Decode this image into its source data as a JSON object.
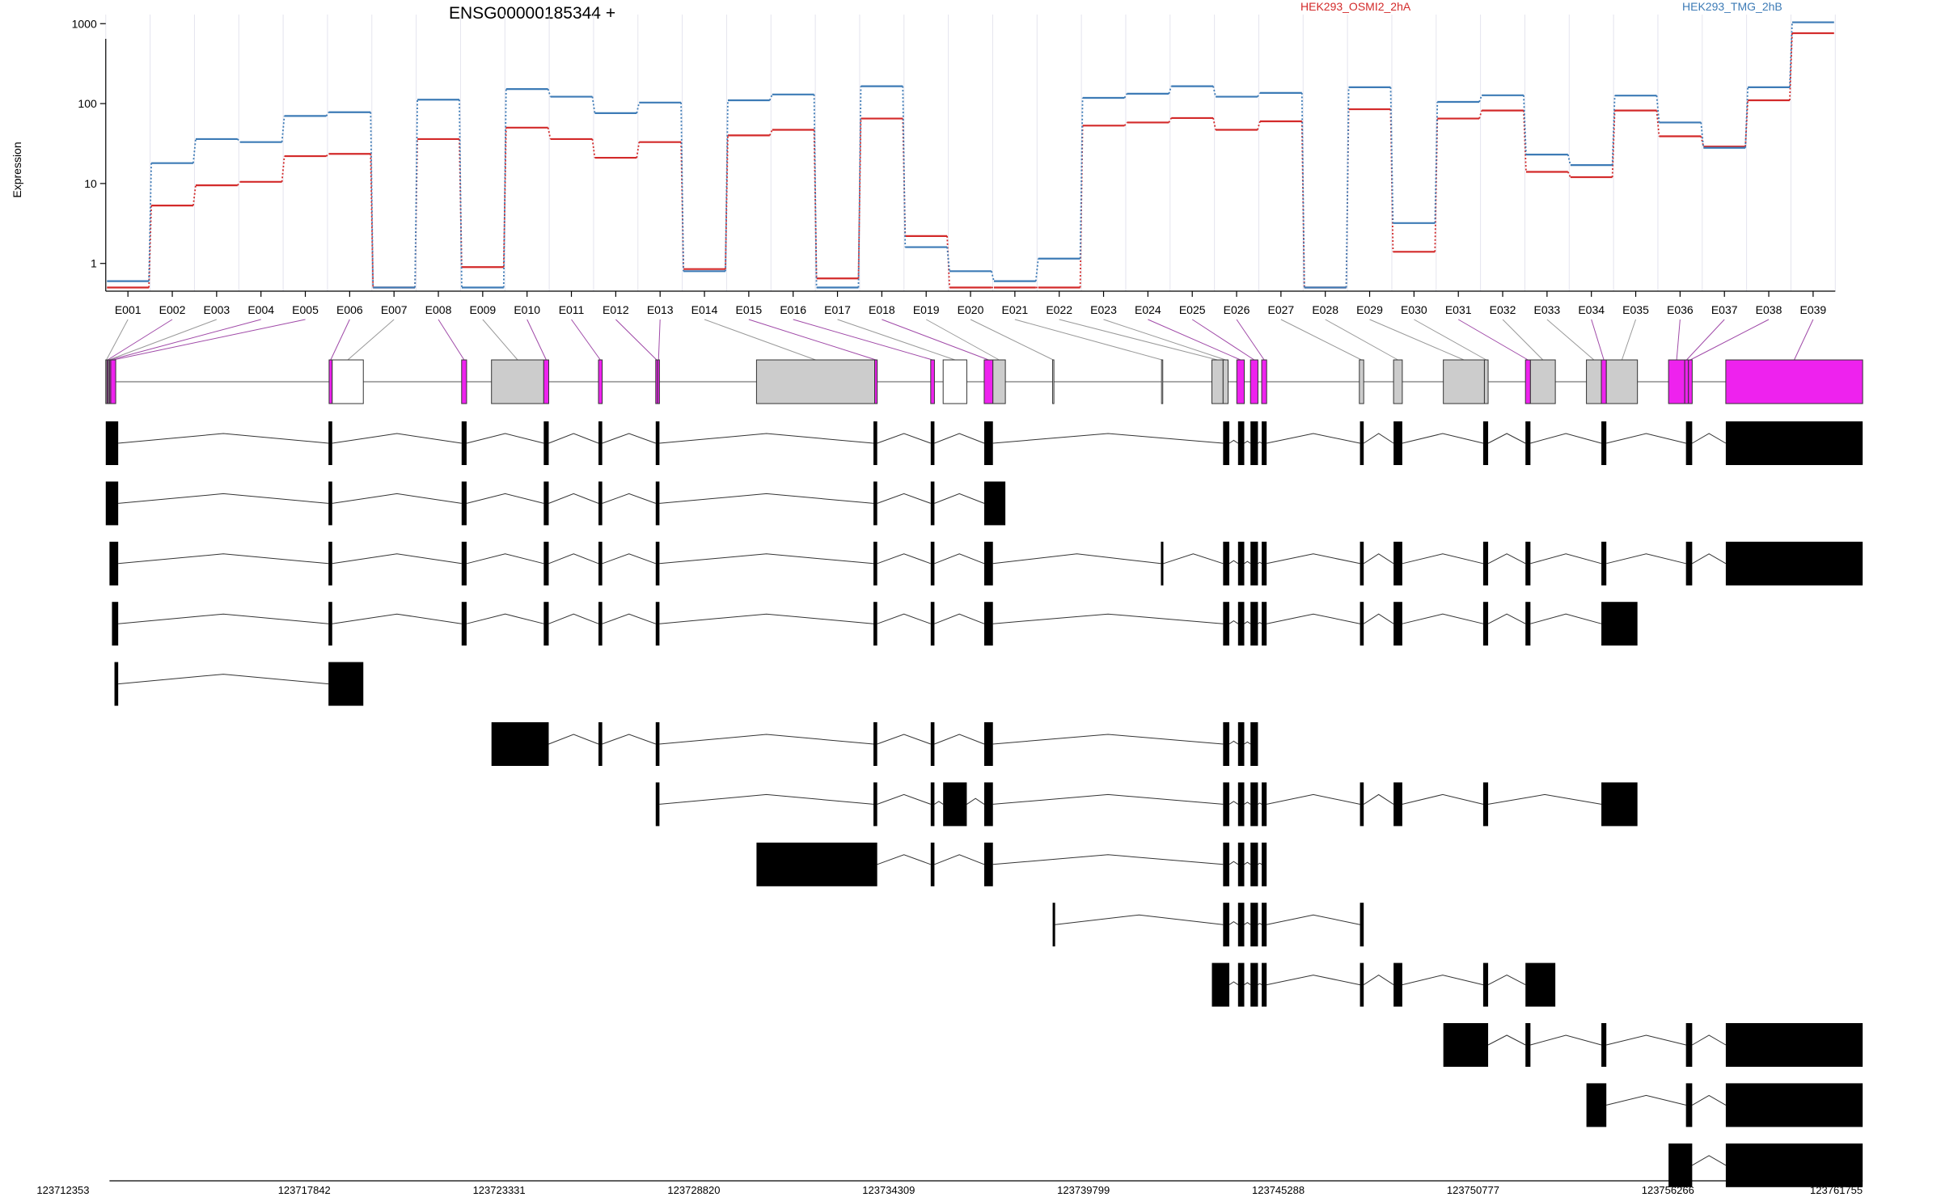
{
  "chart_data": {
    "type": "line",
    "title": "ENSG00000185344 +",
    "ylabel": "Expression",
    "xlabel": "",
    "yscale": "log",
    "ylim": [
      0.45,
      1300
    ],
    "yticks": [
      {
        "value": 1,
        "label": "1"
      },
      {
        "value": 10,
        "label": "10"
      },
      {
        "value": 100,
        "label": "100"
      },
      {
        "value": 1000,
        "label": "1000"
      }
    ],
    "grid": "vertical",
    "legend_placement": "top",
    "categories": [
      "E001",
      "E002",
      "E003",
      "E004",
      "E005",
      "E006",
      "E007",
      "E008",
      "E009",
      "E010",
      "E011",
      "E012",
      "E013",
      "E014",
      "E015",
      "E016",
      "E017",
      "E018",
      "E019",
      "E020",
      "E021",
      "E022",
      "E023",
      "E024",
      "E025",
      "E026",
      "E027",
      "E028",
      "E029",
      "E030",
      "E031",
      "E032",
      "E033",
      "E034",
      "E035",
      "E036",
      "E037",
      "E038",
      "E039"
    ],
    "series": [
      {
        "name": "HEK293_OSMI2_2hA",
        "color": "#d32a2a",
        "values": [
          0.5,
          5.3,
          9.5,
          10.5,
          22,
          23.5,
          0.5,
          36,
          0.9,
          50,
          36,
          21,
          33,
          0.85,
          40,
          47,
          0.65,
          65,
          2.2,
          0.5,
          0.5,
          0.5,
          53,
          58,
          66,
          47,
          60,
          0.5,
          85,
          1.4,
          65,
          82,
          14,
          12,
          82,
          39,
          29,
          110,
          760
        ]
      },
      {
        "name": "HEK293_TMG_2hB",
        "color": "#3d7bb6",
        "values": [
          0.6,
          18,
          36,
          33,
          70,
          78,
          0.5,
          112,
          0.5,
          152,
          122,
          76,
          103,
          0.8,
          110,
          130,
          0.5,
          165,
          1.6,
          0.8,
          0.6,
          1.15,
          118,
          133,
          165,
          122,
          136,
          0.5,
          160,
          3.2,
          105,
          127,
          23,
          17,
          126,
          58,
          28,
          160,
          1040
        ]
      }
    ],
    "genomic_coordinates": [
      "123712353",
      "123717842",
      "123723331",
      "123728820",
      "123734309",
      "123739799",
      "123745288",
      "123750777",
      "123756266",
      "123761755"
    ]
  },
  "gene_model": {
    "exon_bins": [
      {
        "name": "E001",
        "start": 85.0,
        "end": 86.0,
        "color": "#cccccc"
      },
      {
        "name": "E002",
        "start": 86.0,
        "end": 87.0,
        "color": "#ee22ee"
      },
      {
        "name": "E003",
        "start": 87.0,
        "end": 88.0,
        "color": "#cccccc"
      },
      {
        "name": "E004",
        "start": 88.0,
        "end": 89.0,
        "color": "#ee22ee"
      },
      {
        "name": "E005",
        "start": 89.0,
        "end": 93.0,
        "color": "#ee22ee"
      },
      {
        "name": "E006",
        "start": 264.5,
        "end": 267.0,
        "color": "#ee22ee"
      },
      {
        "name": "E007",
        "start": 267.0,
        "end": 292.0,
        "color": "#ffffff"
      },
      {
        "name": "E008",
        "start": 371.0,
        "end": 375.0,
        "color": "#ee22ee"
      },
      {
        "name": "E009",
        "start": 395.0,
        "end": 437.0,
        "color": "#cccccc"
      },
      {
        "name": "E010",
        "start": 437.0,
        "end": 441.0,
        "color": "#ee22ee"
      },
      {
        "name": "E011",
        "start": 481.0,
        "end": 484.0,
        "color": "#ee22ee"
      },
      {
        "name": "E012",
        "start": 527.0,
        "end": 528.5,
        "color": "#ee22ee"
      },
      {
        "name": "E013",
        "start": 528.5,
        "end": 530.0,
        "color": "#ee22ee"
      },
      {
        "name": "E014",
        "start": 608.0,
        "end": 703.0,
        "color": "#cccccc"
      },
      {
        "name": "E015",
        "start": 703.0,
        "end": 705.0,
        "color": "#ee22ee"
      },
      {
        "name": "E016",
        "start": 748.0,
        "end": 751.0,
        "color": "#ee22ee"
      },
      {
        "name": "E017",
        "start": 758.0,
        "end": 777.0,
        "color": "#ffffff"
      },
      {
        "name": "E018",
        "start": 791.0,
        "end": 798.0,
        "color": "#ee22ee"
      },
      {
        "name": "E019",
        "start": 798.0,
        "end": 808.0,
        "color": "#cccccc"
      },
      {
        "name": "E020",
        "start": 846.0,
        "end": 847.0,
        "color": "#ffffff"
      },
      {
        "name": "E021",
        "start": 933.5,
        "end": 934.5,
        "color": "#ffffff"
      },
      {
        "name": "E022",
        "start": 974.0,
        "end": 983.0,
        "color": "#cccccc"
      },
      {
        "name": "E023",
        "start": 983.0,
        "end": 987.0,
        "color": "#cccccc"
      },
      {
        "name": "E024",
        "start": 994.0,
        "end": 1000.0,
        "color": "#ee22ee"
      },
      {
        "name": "E025",
        "start": 1005.0,
        "end": 1011.0,
        "color": "#ee22ee"
      },
      {
        "name": "E026",
        "start": 1014.0,
        "end": 1018.0,
        "color": "#ee22ee"
      },
      {
        "name": "E027",
        "start": 1092.5,
        "end": 1096.0,
        "color": "#cccccc"
      },
      {
        "name": "E028",
        "start": 1120.0,
        "end": 1127.0,
        "color": "#cccccc"
      },
      {
        "name": "E029",
        "start": 1160.0,
        "end": 1193.0,
        "color": "#cccccc"
      },
      {
        "name": "E030",
        "start": 1193.0,
        "end": 1196.0,
        "color": "#cccccc"
      },
      {
        "name": "E031",
        "start": 1226.0,
        "end": 1230.0,
        "color": "#ee22ee"
      },
      {
        "name": "E032",
        "start": 1230.0,
        "end": 1250.0,
        "color": "#cccccc"
      },
      {
        "name": "E033",
        "start": 1275.0,
        "end": 1287.0,
        "color": "#cccccc"
      },
      {
        "name": "E034",
        "start": 1287.0,
        "end": 1291.0,
        "color": "#ee22ee"
      },
      {
        "name": "E035",
        "start": 1291.0,
        "end": 1316.0,
        "color": "#cccccc"
      },
      {
        "name": "E036",
        "start": 1341.0,
        "end": 1354.0,
        "color": "#ee22ee"
      },
      {
        "name": "E037",
        "start": 1354.0,
        "end": 1357.0,
        "color": "#ee22ee"
      },
      {
        "name": "E038",
        "start": 1357.0,
        "end": 1360.0,
        "color": "#ee22ee"
      },
      {
        "name": "E039",
        "start": 1387.0,
        "end": 1497.0,
        "color": "#ee22ee"
      }
    ],
    "transcripts": [
      [
        [
          85,
          95
        ],
        [
          264,
          267
        ],
        [
          371,
          375
        ],
        [
          437,
          441
        ],
        [
          481,
          484
        ],
        [
          527,
          530
        ],
        [
          702,
          705
        ],
        [
          748,
          751
        ],
        [
          791,
          798
        ],
        [
          983,
          988
        ],
        [
          995,
          1000
        ],
        [
          1005,
          1011
        ],
        [
          1014,
          1018
        ],
        [
          1093,
          1096
        ],
        [
          1120,
          1127
        ],
        [
          1192,
          1196
        ],
        [
          1226,
          1230
        ],
        [
          1287,
          1291
        ],
        [
          1355,
          1360
        ],
        [
          1387,
          1497
        ]
      ],
      [
        [
          85,
          95
        ],
        [
          264,
          267
        ],
        [
          371,
          375
        ],
        [
          437,
          441
        ],
        [
          481,
          484
        ],
        [
          527,
          530
        ],
        [
          702,
          705
        ],
        [
          748,
          751
        ],
        [
          791,
          808
        ]
      ],
      [
        [
          88,
          95
        ],
        [
          264,
          267
        ],
        [
          371,
          375
        ],
        [
          437,
          441
        ],
        [
          481,
          484
        ],
        [
          527,
          530
        ],
        [
          702,
          705
        ],
        [
          748,
          751
        ],
        [
          791,
          798
        ],
        [
          933,
          935
        ],
        [
          983,
          988
        ],
        [
          995,
          1000
        ],
        [
          1005,
          1011
        ],
        [
          1014,
          1018
        ],
        [
          1093,
          1096
        ],
        [
          1120,
          1127
        ],
        [
          1192,
          1196
        ],
        [
          1226,
          1230
        ],
        [
          1287,
          1291
        ],
        [
          1355,
          1360
        ],
        [
          1387,
          1497
        ]
      ],
      [
        [
          90,
          95
        ],
        [
          264,
          267
        ],
        [
          371,
          375
        ],
        [
          437,
          441
        ],
        [
          481,
          484
        ],
        [
          527,
          530
        ],
        [
          702,
          705
        ],
        [
          748,
          751
        ],
        [
          791,
          798
        ],
        [
          983,
          988
        ],
        [
          995,
          1000
        ],
        [
          1005,
          1011
        ],
        [
          1014,
          1018
        ],
        [
          1093,
          1096
        ],
        [
          1120,
          1127
        ],
        [
          1192,
          1196
        ],
        [
          1226,
          1230
        ],
        [
          1287,
          1316
        ]
      ],
      [
        [
          92,
          95
        ],
        [
          264,
          292
        ]
      ],
      [
        [
          395,
          441
        ],
        [
          481,
          484
        ],
        [
          527,
          530
        ],
        [
          702,
          705
        ],
        [
          748,
          751
        ],
        [
          791,
          798
        ],
        [
          983,
          988
        ],
        [
          995,
          1000
        ],
        [
          1005,
          1011
        ]
      ],
      [
        [
          527,
          530
        ],
        [
          702,
          705
        ],
        [
          748,
          751
        ],
        [
          758,
          777
        ],
        [
          791,
          798
        ],
        [
          983,
          988
        ],
        [
          995,
          1000
        ],
        [
          1005,
          1011
        ],
        [
          1014,
          1018
        ],
        [
          1093,
          1096
        ],
        [
          1120,
          1127
        ],
        [
          1192,
          1196
        ],
        [
          1287,
          1316
        ]
      ],
      [
        [
          608,
          705
        ],
        [
          748,
          751
        ],
        [
          791,
          798
        ],
        [
          983,
          988
        ],
        [
          995,
          1000
        ],
        [
          1005,
          1011
        ],
        [
          1014,
          1018
        ]
      ],
      [
        [
          846,
          848
        ],
        [
          983,
          988
        ],
        [
          995,
          1000
        ],
        [
          1005,
          1011
        ],
        [
          1014,
          1018
        ],
        [
          1093,
          1096
        ]
      ],
      [
        [
          974,
          988
        ],
        [
          995,
          1000
        ],
        [
          1005,
          1011
        ],
        [
          1014,
          1018
        ],
        [
          1093,
          1096
        ],
        [
          1120,
          1127
        ],
        [
          1192,
          1196
        ],
        [
          1226,
          1250
        ]
      ],
      [
        [
          1160,
          1196
        ],
        [
          1226,
          1230
        ],
        [
          1287,
          1291
        ],
        [
          1355,
          1360
        ],
        [
          1387,
          1497
        ]
      ],
      [
        [
          1275,
          1291
        ],
        [
          1355,
          1360
        ],
        [
          1387,
          1497
        ]
      ],
      [
        [
          1341,
          1360
        ],
        [
          1387,
          1497
        ]
      ]
    ]
  }
}
